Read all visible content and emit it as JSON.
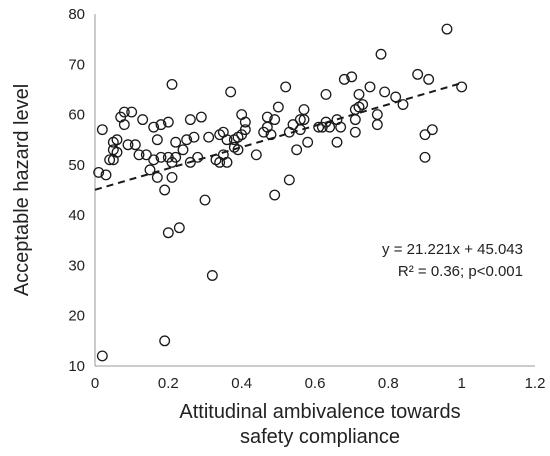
{
  "chart_data": {
    "type": "scatter",
    "title": "",
    "xlabel_lines": [
      "Attitudinal ambivalence towards",
      "safety compliance"
    ],
    "ylabel": "Acceptable hazard level",
    "xlim": [
      0,
      1.2
    ],
    "ylim": [
      10,
      80
    ],
    "x_ticks": [
      "0",
      "0.2",
      "0.4",
      "0.6",
      "0.8",
      "1",
      "1.2"
    ],
    "y_ticks": [
      "10",
      "20",
      "30",
      "40",
      "50",
      "60",
      "70",
      "80"
    ],
    "grid": false,
    "legend": "none",
    "marker_color": "#1a1a1a",
    "trendline": {
      "slope": 21.221,
      "intercept": 45.043,
      "x_range": [
        0,
        1
      ],
      "color": "#1a1a1a",
      "style": "dashed"
    },
    "annotation_lines": [
      "y = 21.221x + 45.043",
      "R² = 0.36; p<0.001"
    ],
    "points": [
      [
        0.01,
        48.5
      ],
      [
        0.02,
        12
      ],
      [
        0.02,
        57
      ],
      [
        0.03,
        48
      ],
      [
        0.04,
        51
      ],
      [
        0.05,
        53
      ],
      [
        0.05,
        54.5
      ],
      [
        0.05,
        51
      ],
      [
        0.06,
        55
      ],
      [
        0.06,
        52.5
      ],
      [
        0.07,
        59.5
      ],
      [
        0.08,
        58
      ],
      [
        0.08,
        60.5
      ],
      [
        0.09,
        54
      ],
      [
        0.1,
        60.5
      ],
      [
        0.11,
        54
      ],
      [
        0.12,
        52
      ],
      [
        0.13,
        59
      ],
      [
        0.14,
        52
      ],
      [
        0.15,
        49
      ],
      [
        0.16,
        57.5
      ],
      [
        0.16,
        51
      ],
      [
        0.17,
        47.5
      ],
      [
        0.17,
        55
      ],
      [
        0.18,
        51.5
      ],
      [
        0.18,
        58
      ],
      [
        0.19,
        15
      ],
      [
        0.19,
        45
      ],
      [
        0.2,
        58.5
      ],
      [
        0.2,
        51.5
      ],
      [
        0.2,
        36.5
      ],
      [
        0.21,
        47.5
      ],
      [
        0.21,
        50.5
      ],
      [
        0.21,
        66
      ],
      [
        0.22,
        51.5
      ],
      [
        0.22,
        54.5
      ],
      [
        0.23,
        37.5
      ],
      [
        0.24,
        53
      ],
      [
        0.25,
        55
      ],
      [
        0.26,
        50.5
      ],
      [
        0.26,
        59
      ],
      [
        0.27,
        55.5
      ],
      [
        0.28,
        51.5
      ],
      [
        0.29,
        59.5
      ],
      [
        0.3,
        43
      ],
      [
        0.31,
        55.5
      ],
      [
        0.32,
        28
      ],
      [
        0.33,
        51
      ],
      [
        0.34,
        50.5
      ],
      [
        0.34,
        56
      ],
      [
        0.35,
        56.5
      ],
      [
        0.35,
        52
      ],
      [
        0.36,
        55
      ],
      [
        0.36,
        50.5
      ],
      [
        0.37,
        64.5
      ],
      [
        0.38,
        53.5
      ],
      [
        0.38,
        55
      ],
      [
        0.39,
        55.5
      ],
      [
        0.39,
        53
      ],
      [
        0.4,
        56
      ],
      [
        0.4,
        60
      ],
      [
        0.41,
        57
      ],
      [
        0.41,
        58.5
      ],
      [
        0.44,
        52
      ],
      [
        0.46,
        56.5
      ],
      [
        0.47,
        57.5
      ],
      [
        0.47,
        59.5
      ],
      [
        0.48,
        56
      ],
      [
        0.49,
        44
      ],
      [
        0.49,
        59
      ],
      [
        0.5,
        61.5
      ],
      [
        0.52,
        65.5
      ],
      [
        0.53,
        56.5
      ],
      [
        0.53,
        47
      ],
      [
        0.54,
        58
      ],
      [
        0.55,
        53
      ],
      [
        0.56,
        57
      ],
      [
        0.56,
        59
      ],
      [
        0.57,
        59
      ],
      [
        0.57,
        61
      ],
      [
        0.58,
        54.5
      ],
      [
        0.61,
        57.5
      ],
      [
        0.62,
        57.5
      ],
      [
        0.63,
        64
      ],
      [
        0.63,
        58.5
      ],
      [
        0.64,
        57.5
      ],
      [
        0.66,
        54.5
      ],
      [
        0.66,
        59
      ],
      [
        0.67,
        57.5
      ],
      [
        0.68,
        67
      ],
      [
        0.7,
        67.5
      ],
      [
        0.71,
        59
      ],
      [
        0.71,
        56.5
      ],
      [
        0.71,
        61
      ],
      [
        0.72,
        61.5
      ],
      [
        0.72,
        64
      ],
      [
        0.73,
        62
      ],
      [
        0.75,
        65.5
      ],
      [
        0.77,
        58
      ],
      [
        0.77,
        60
      ],
      [
        0.78,
        72
      ],
      [
        0.79,
        64.5
      ],
      [
        0.82,
        63.5
      ],
      [
        0.84,
        62
      ],
      [
        0.88,
        68
      ],
      [
        0.9,
        51.5
      ],
      [
        0.9,
        56
      ],
      [
        0.91,
        67
      ],
      [
        0.92,
        57
      ],
      [
        0.96,
        77
      ],
      [
        1.0,
        65.5
      ]
    ]
  }
}
